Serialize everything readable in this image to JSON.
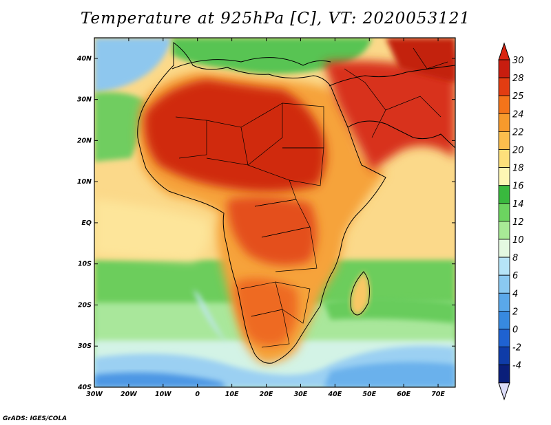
{
  "title": "Temperature at 925hPa [C], VT: 2020053121",
  "credit": "GrADS: IGES/COLA",
  "map": {
    "lon_range": [
      -30,
      75
    ],
    "lat_range": [
      -40,
      45
    ],
    "lon_ticks": [
      {
        "value": -30,
        "label": "30W"
      },
      {
        "value": -20,
        "label": "20W"
      },
      {
        "value": -10,
        "label": "10W"
      },
      {
        "value": 0,
        "label": "0"
      },
      {
        "value": 10,
        "label": "10E"
      },
      {
        "value": 20,
        "label": "20E"
      },
      {
        "value": 30,
        "label": "30E"
      },
      {
        "value": 40,
        "label": "40E"
      },
      {
        "value": 50,
        "label": "50E"
      },
      {
        "value": 60,
        "label": "60E"
      },
      {
        "value": 70,
        "label": "70E"
      }
    ],
    "lat_ticks": [
      {
        "value": 40,
        "label": "40N"
      },
      {
        "value": 30,
        "label": "30N"
      },
      {
        "value": 20,
        "label": "20N"
      },
      {
        "value": 10,
        "label": "10N"
      },
      {
        "value": 0,
        "label": "EQ"
      },
      {
        "value": -10,
        "label": "10S"
      },
      {
        "value": -20,
        "label": "20S"
      },
      {
        "value": -30,
        "label": "30S"
      },
      {
        "value": -40,
        "label": "40S"
      }
    ]
  },
  "colorbar": {
    "labels": [
      "30",
      "28",
      "25",
      "24",
      "22",
      "20",
      "18",
      "16",
      "14",
      "12",
      "10",
      "8",
      "6",
      "4",
      "2",
      "0",
      "-2",
      "-4"
    ],
    "colors": [
      "#c81d0f",
      "#e23d12",
      "#f4741a",
      "#f79a2c",
      "#fbbe4d",
      "#fde07b",
      "#fdf6b4",
      "#39b93e",
      "#6cd460",
      "#a8ea96",
      "#e4f9e1",
      "#b6e4f7",
      "#8ac9f1",
      "#5aa8ea",
      "#3789e0",
      "#1f62d1",
      "#0f3ca8",
      "#0a1f7a"
    ],
    "top_color": "#d92410",
    "bottom_color": "#dcdcf8"
  }
}
